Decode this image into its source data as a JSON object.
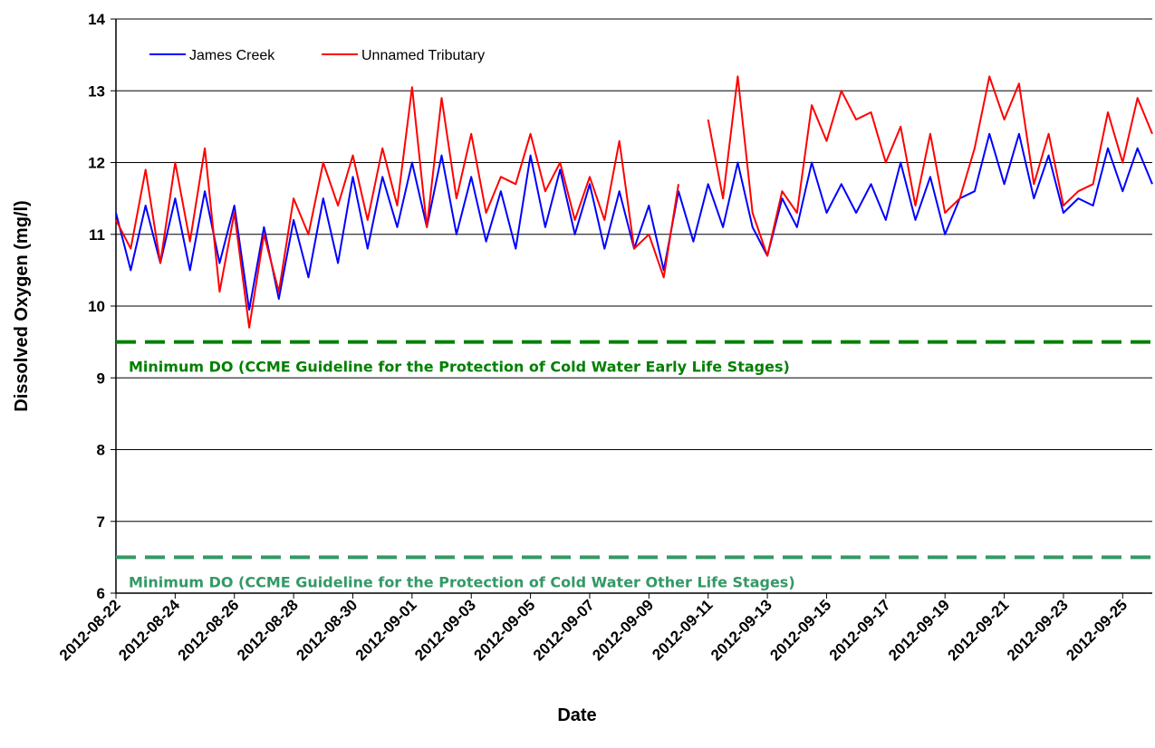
{
  "chart_data": {
    "type": "line",
    "x_label": "Date",
    "y_label": "Dissolved Oxygen (mg/l)",
    "x": [
      "2012-08-22 00:00",
      "2012-08-22 12:00",
      "2012-08-23 00:00",
      "2012-08-23 12:00",
      "2012-08-24 00:00",
      "2012-08-24 12:00",
      "2012-08-25 00:00",
      "2012-08-25 12:00",
      "2012-08-26 00:00",
      "2012-08-26 12:00",
      "2012-08-27 00:00",
      "2012-08-27 12:00",
      "2012-08-28 00:00",
      "2012-08-28 12:00",
      "2012-08-29 00:00",
      "2012-08-29 12:00",
      "2012-08-30 00:00",
      "2012-08-30 12:00",
      "2012-08-31 00:00",
      "2012-08-31 12:00",
      "2012-09-01 00:00",
      "2012-09-01 12:00",
      "2012-09-02 00:00",
      "2012-09-02 12:00",
      "2012-09-03 00:00",
      "2012-09-03 12:00",
      "2012-09-04 00:00",
      "2012-09-04 12:00",
      "2012-09-05 00:00",
      "2012-09-05 12:00",
      "2012-09-06 00:00",
      "2012-09-06 12:00",
      "2012-09-07 00:00",
      "2012-09-07 12:00",
      "2012-09-08 00:00",
      "2012-09-08 12:00",
      "2012-09-09 00:00",
      "2012-09-09 12:00",
      "2012-09-10 00:00",
      "2012-09-10 12:00",
      "2012-09-11 00:00",
      "2012-09-11 12:00",
      "2012-09-12 00:00",
      "2012-09-12 12:00",
      "2012-09-13 00:00",
      "2012-09-13 12:00",
      "2012-09-14 00:00",
      "2012-09-14 12:00",
      "2012-09-15 00:00",
      "2012-09-15 12:00",
      "2012-09-16 00:00",
      "2012-09-16 12:00",
      "2012-09-17 00:00",
      "2012-09-17 12:00",
      "2012-09-18 00:00",
      "2012-09-18 12:00",
      "2012-09-19 00:00",
      "2012-09-19 12:00",
      "2012-09-20 00:00",
      "2012-09-20 12:00",
      "2012-09-21 00:00",
      "2012-09-21 12:00",
      "2012-09-22 00:00",
      "2012-09-22 12:00",
      "2012-09-23 00:00",
      "2012-09-23 12:00",
      "2012-09-24 00:00",
      "2012-09-24 12:00",
      "2012-09-25 00:00",
      "2012-09-25 12:00",
      "2012-09-26 00:00"
    ],
    "series": [
      {
        "name": "James Creek",
        "color": "#0000ff",
        "values": [
          11.3,
          10.5,
          11.4,
          10.6,
          11.5,
          10.5,
          11.6,
          10.6,
          11.4,
          9.95,
          11.1,
          10.1,
          11.2,
          10.4,
          11.5,
          10.6,
          11.8,
          10.8,
          11.8,
          11.1,
          12.0,
          11.1,
          12.1,
          11.0,
          11.8,
          10.9,
          11.6,
          10.8,
          12.1,
          11.1,
          11.9,
          11.0,
          11.7,
          10.8,
          11.6,
          10.8,
          11.4,
          10.5,
          11.6,
          10.9,
          11.7,
          11.1,
          12.0,
          11.1,
          10.7,
          11.5,
          11.1,
          12.0,
          11.3,
          11.7,
          11.3,
          11.7,
          11.2,
          12.0,
          11.2,
          11.8,
          11.0,
          11.5,
          11.6,
          12.4,
          11.7,
          12.4,
          11.5,
          12.1,
          11.3,
          11.5,
          11.4,
          12.2,
          11.6,
          12.2,
          11.7
        ]
      },
      {
        "name": "Unnamed Tributary",
        "color": "#ff0000",
        "values": [
          11.2,
          10.8,
          11.9,
          10.6,
          12.0,
          10.9,
          12.2,
          10.2,
          11.3,
          9.7,
          11.0,
          10.2,
          11.5,
          11.0,
          12.0,
          11.4,
          12.1,
          11.2,
          12.2,
          11.4,
          13.05,
          11.1,
          12.9,
          11.5,
          12.4,
          11.3,
          11.8,
          11.7,
          12.4,
          11.6,
          12.0,
          11.2,
          11.8,
          11.2,
          12.3,
          10.8,
          11.0,
          10.4,
          11.7,
          null,
          12.6,
          11.5,
          13.2,
          11.3,
          10.7,
          11.6,
          11.3,
          12.8,
          12.3,
          13.0,
          12.6,
          12.7,
          12.0,
          12.5,
          11.4,
          12.4,
          11.3,
          11.5,
          12.2,
          13.2,
          12.6,
          13.1,
          11.7,
          12.4,
          11.4,
          11.6,
          11.7,
          12.7,
          12.0,
          12.9,
          12.4
        ]
      }
    ],
    "reference_lines": [
      {
        "value": 9.5,
        "label": "Minimum DO (CCME Guideline for the Protection of Cold Water Early Life Stages)",
        "color": "#008000"
      },
      {
        "value": 6.5,
        "label": "Minimum DO (CCME Guideline for the Protection of Cold Water Other Life Stages)",
        "color": "#339966"
      }
    ],
    "xlim": [
      "2012-08-22",
      "2012-09-26"
    ],
    "xticks": [
      "2012-08-22",
      "2012-08-24",
      "2012-08-26",
      "2012-08-28",
      "2012-08-30",
      "2012-09-01",
      "2012-09-03",
      "2012-09-05",
      "2012-09-07",
      "2012-09-09",
      "2012-09-11",
      "2012-09-13",
      "2012-09-15",
      "2012-09-17",
      "2012-09-19",
      "2012-09-21",
      "2012-09-23",
      "2012-09-25"
    ],
    "ylim": [
      6,
      14
    ],
    "yticks": [
      6,
      7,
      8,
      9,
      10,
      11,
      12,
      13,
      14
    ],
    "grid": true,
    "legend": "top-left"
  }
}
